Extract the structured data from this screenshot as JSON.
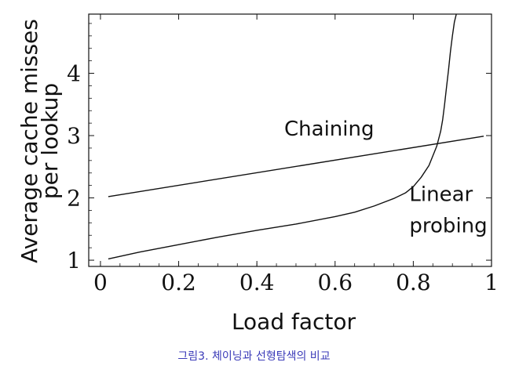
{
  "caption": "그림3. 체이닝과 선형탐색의 비교",
  "chart_data": {
    "type": "line",
    "xlabel": "Load factor",
    "ylabel_lines": [
      "Average cache misses",
      "per lookup"
    ],
    "xlim": [
      -0.03,
      1.0
    ],
    "ylim": [
      0.9,
      4.95
    ],
    "x_ticks": [
      0,
      0.2,
      0.4,
      0.6,
      0.8,
      1
    ],
    "x_tick_labels": [
      "0",
      "0.2",
      "0.4",
      "0.6",
      "0.8",
      "1"
    ],
    "y_ticks": [
      1,
      2,
      3,
      4
    ],
    "y_tick_labels": [
      "1",
      "2",
      "3",
      "4"
    ],
    "grid": false,
    "series": [
      {
        "name": "Chaining",
        "x": [
          0.02,
          0.98
        ],
        "y": [
          2.02,
          2.99
        ]
      },
      {
        "name": "Linear probing",
        "x": [
          0.02,
          0.1,
          0.2,
          0.3,
          0.4,
          0.5,
          0.6,
          0.65,
          0.7,
          0.75,
          0.78,
          0.8,
          0.82,
          0.84,
          0.86,
          0.87,
          0.875,
          0.88,
          0.885,
          0.89,
          0.895,
          0.9,
          0.905,
          0.91
        ],
        "y": [
          1.02,
          1.13,
          1.25,
          1.37,
          1.48,
          1.58,
          1.7,
          1.77,
          1.87,
          1.99,
          2.08,
          2.18,
          2.33,
          2.52,
          2.83,
          3.07,
          3.25,
          3.5,
          3.78,
          4.05,
          4.35,
          4.6,
          4.82,
          4.95
        ]
      }
    ],
    "annotations": [
      {
        "text": "Chaining",
        "x": 0.47,
        "y": 3.0
      },
      {
        "text": "Linear",
        "x": 0.79,
        "y": 1.95
      },
      {
        "text": "probing",
        "x": 0.79,
        "y": 1.45
      }
    ]
  }
}
